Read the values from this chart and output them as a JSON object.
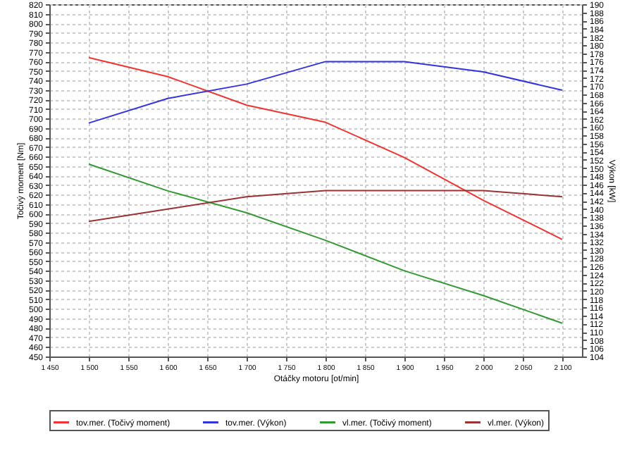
{
  "chart_data": {
    "type": "line",
    "xlabel": "Otáčky motoru [ot/min]",
    "ylabel": "Točivý moment [Nm]",
    "y2label": "Výkon [kW]",
    "x": [
      1500,
      1600,
      1700,
      1800,
      1900,
      2000,
      2100
    ],
    "xlim": [
      1450,
      2125
    ],
    "xticks": [
      {
        "value": 1450,
        "label": "1 450"
      },
      {
        "value": 1500,
        "label": "1 500"
      },
      {
        "value": 1550,
        "label": "1 550"
      },
      {
        "value": 1600,
        "label": "1 600"
      },
      {
        "value": 1650,
        "label": "1 650"
      },
      {
        "value": 1700,
        "label": "1 700"
      },
      {
        "value": 1750,
        "label": "1 750"
      },
      {
        "value": 1800,
        "label": "1 800"
      },
      {
        "value": 1850,
        "label": "1 850"
      },
      {
        "value": 1900,
        "label": "1 900"
      },
      {
        "value": 1950,
        "label": "1 950"
      },
      {
        "value": 2000,
        "label": "2 000"
      },
      {
        "value": 2050,
        "label": "2 050"
      },
      {
        "value": 2100,
        "label": "2 100"
      }
    ],
    "ylim": [
      450,
      820
    ],
    "yticks": [
      450,
      460,
      470,
      480,
      490,
      500,
      510,
      520,
      530,
      540,
      550,
      560,
      570,
      580,
      590,
      600,
      610,
      620,
      630,
      640,
      650,
      660,
      670,
      680,
      690,
      700,
      710,
      720,
      730,
      740,
      750,
      760,
      770,
      780,
      790,
      800,
      810,
      820
    ],
    "y2lim": [
      104,
      190
    ],
    "y2ticks": [
      104,
      106,
      108,
      110,
      112,
      114,
      116,
      118,
      120,
      122,
      124,
      126,
      128,
      130,
      132,
      134,
      136,
      138,
      140,
      142,
      144,
      146,
      148,
      150,
      152,
      154,
      156,
      158,
      160,
      162,
      164,
      166,
      168,
      170,
      172,
      174,
      176,
      178,
      180,
      182,
      184,
      186,
      188,
      190
    ],
    "series": [
      {
        "name": "tov.mer. (Točivý moment)",
        "color": "#ee3333",
        "values": [
          764,
          744,
          714,
          696,
          659,
          614,
          573
        ]
      },
      {
        "name": "tov.mer. (Výkon)",
        "color": "#3333dd",
        "axis": "y2",
        "values": [
          161,
          167,
          170.5,
          176,
          176,
          173.5,
          169
        ]
      },
      {
        "name": "vl.mer. (Točivý moment)",
        "color": "#339933",
        "values": [
          652,
          624,
          601,
          572,
          540,
          514,
          485
        ]
      },
      {
        "name": "vl.mer. (Výkon)",
        "color": "#993333",
        "axis": "y2",
        "values": [
          137,
          140,
          143,
          144.5,
          144.5,
          144.5,
          143
        ]
      }
    ],
    "grid": true,
    "legend": "bottom"
  }
}
